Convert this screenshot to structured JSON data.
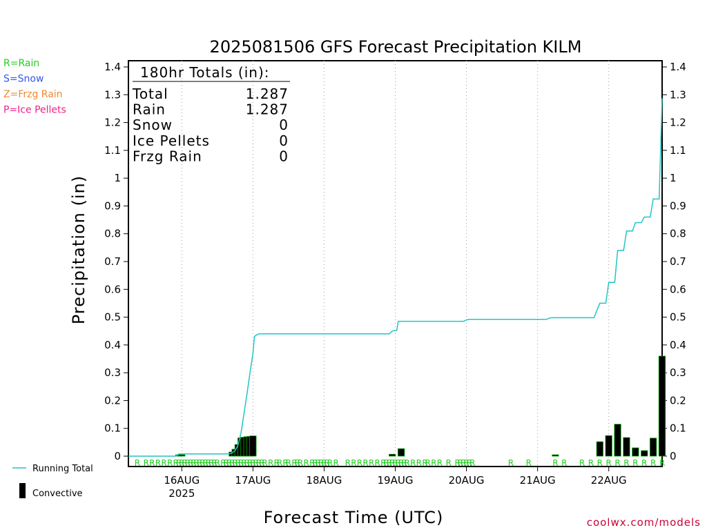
{
  "title": "2025081506 GFS Forecast Precipitation KILM",
  "type_legend": [
    {
      "text": "R=Rain",
      "color": "#22cc22"
    },
    {
      "text": "S=Snow",
      "color": "#3355ee"
    },
    {
      "text": "Z=Frzg Rain",
      "color": "#ee8833"
    },
    {
      "text": "P=Ice Pellets",
      "color": "#ee2288"
    }
  ],
  "totals_box": {
    "header": "180hr Totals (in):",
    "rows": [
      {
        "label": "Total",
        "value": "1.287"
      },
      {
        "label": "Rain",
        "value": "1.287"
      },
      {
        "label": "Snow",
        "value": "0"
      },
      {
        "label": "Ice Pellets",
        "value": "0"
      },
      {
        "label": "Frzg Rain",
        "value": "0"
      }
    ]
  },
  "series_legend": {
    "running_total": "Running Total",
    "convective": "Convective"
  },
  "credit": "coolwx.com/models",
  "colors": {
    "running_total": "#22c4c4",
    "bar_fill": "#000000",
    "bar_edge": "#00aa00",
    "rain": "#22cc22"
  },
  "chart_data": {
    "type": "bar",
    "title": "2025081506 GFS Forecast Precipitation KILM",
    "xlabel": "Forecast Time (UTC)",
    "ylabel": "Precipitation (in)",
    "ylim": [
      0,
      1.4
    ],
    "xlim_hours": [
      0,
      180
    ],
    "y_ticks": [
      0,
      0.1,
      0.2,
      0.3,
      0.4,
      0.5,
      0.6,
      0.7,
      0.8,
      0.9,
      1,
      1.1,
      1.2,
      1.3,
      1.4
    ],
    "y_tick_labels": [
      "0",
      "0.1",
      "0.2",
      "0.3",
      "0.4",
      "0.5",
      "0.6",
      "0.7",
      "0.8",
      "0.9",
      "1",
      "1.1",
      "1.2",
      "1.3",
      "1.4"
    ],
    "x_ticks": [
      {
        "hour": 18,
        "label": "16AUG",
        "sub": "2025"
      },
      {
        "hour": 42,
        "label": "17AUG",
        "sub": ""
      },
      {
        "hour": 66,
        "label": "18AUG",
        "sub": ""
      },
      {
        "hour": 90,
        "label": "19AUG",
        "sub": ""
      },
      {
        "hour": 114,
        "label": "20AUG",
        "sub": ""
      },
      {
        "hour": 138,
        "label": "21AUG",
        "sub": ""
      },
      {
        "hour": 162,
        "label": "22AUG",
        "sub": ""
      }
    ],
    "grid": "vertical dotted at day boundaries",
    "running_total": {
      "name": "Running Total",
      "hours": [
        0,
        16,
        17,
        34,
        35,
        36,
        37,
        38,
        39,
        40,
        41,
        42,
        42.5,
        43,
        44,
        70,
        88,
        89,
        90,
        90.5,
        91,
        113,
        114,
        115,
        141,
        142,
        143,
        144,
        157,
        159,
        161,
        162,
        164,
        165,
        167,
        168,
        170,
        171,
        173,
        174,
        176,
        177,
        179,
        180
      ],
      "values": [
        0.0,
        0.0,
        0.008,
        0.008,
        0.012,
        0.02,
        0.04,
        0.085,
        0.155,
        0.225,
        0.3,
        0.37,
        0.43,
        0.435,
        0.44,
        0.44,
        0.44,
        0.45,
        0.452,
        0.452,
        0.485,
        0.485,
        0.49,
        0.492,
        0.492,
        0.497,
        0.498,
        0.498,
        0.498,
        0.55,
        0.55,
        0.625,
        0.625,
        0.74,
        0.74,
        0.81,
        0.81,
        0.84,
        0.84,
        0.86,
        0.86,
        0.925,
        0.925,
        1.287
      ]
    },
    "convective": {
      "name": "Convective",
      "bars": [
        {
          "hour": 17,
          "value": 0.005
        },
        {
          "hour": 18,
          "value": 0.005
        },
        {
          "hour": 35,
          "value": 0.015
        },
        {
          "hour": 36,
          "value": 0.025
        },
        {
          "hour": 37,
          "value": 0.042
        },
        {
          "hour": 38,
          "value": 0.066
        },
        {
          "hour": 39,
          "value": 0.068
        },
        {
          "hour": 40,
          "value": 0.07
        },
        {
          "hour": 41,
          "value": 0.071
        },
        {
          "hour": 42,
          "value": 0.073
        },
        {
          "hour": 89,
          "value": 0.007
        },
        {
          "hour": 92,
          "value": 0.027
        },
        {
          "hour": 144,
          "value": 0.005
        },
        {
          "hour": 159,
          "value": 0.052
        },
        {
          "hour": 162,
          "value": 0.074
        },
        {
          "hour": 165,
          "value": 0.115
        },
        {
          "hour": 168,
          "value": 0.067
        },
        {
          "hour": 171,
          "value": 0.03
        },
        {
          "hour": 174,
          "value": 0.02
        },
        {
          "hour": 177,
          "value": 0.065
        },
        {
          "hour": 180,
          "value": 0.36
        }
      ]
    },
    "precip_type_marks": {
      "label": "R",
      "hours": [
        3,
        6,
        8,
        10,
        12,
        14,
        16,
        17,
        18,
        19,
        20,
        21,
        22,
        23,
        24,
        25,
        26,
        27,
        28,
        29,
        30,
        32,
        33,
        34,
        35,
        36,
        37,
        38,
        39,
        40,
        41,
        42,
        43,
        44,
        45,
        46,
        48,
        50,
        51,
        53,
        54,
        56,
        57,
        58,
        60,
        62,
        63,
        64,
        65,
        66,
        67,
        68,
        70,
        74,
        76,
        78,
        80,
        82,
        84,
        86,
        87,
        88,
        89,
        90,
        91,
        92,
        93,
        94,
        96,
        98,
        100,
        101,
        103,
        105,
        108,
        111,
        112,
        113,
        114,
        115,
        116,
        129,
        135,
        144,
        147,
        153,
        156,
        159,
        162,
        165,
        168,
        171,
        174,
        177,
        180
      ]
    }
  }
}
